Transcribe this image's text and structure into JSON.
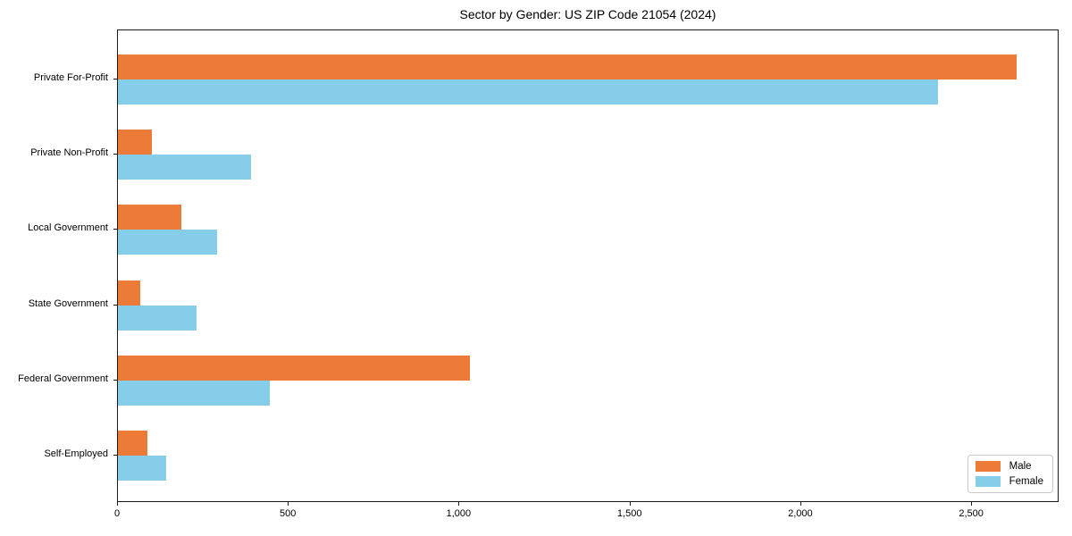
{
  "title": "Sector by Gender: US ZIP Code 21054 (2024)",
  "chart_data": {
    "type": "bar",
    "orientation": "horizontal",
    "title": "Sector by Gender: US ZIP Code 21054 (2024)",
    "categories": [
      "Private For-Profit",
      "Private Non-Profit",
      "Local Government",
      "State Government",
      "Federal Government",
      "Self-Employed"
    ],
    "series": [
      {
        "name": "Male",
        "color": "#EC7B38",
        "values": [
          2630,
          100,
          185,
          65,
          1030,
          85
        ]
      },
      {
        "name": "Female",
        "color": "#86CDE9",
        "values": [
          2400,
          390,
          290,
          230,
          445,
          140
        ]
      }
    ],
    "xlabel": "",
    "ylabel": "",
    "xlim": [
      0,
      2756
    ],
    "x_ticks": [
      0,
      500,
      1000,
      1500,
      2000,
      2500
    ],
    "x_tick_labels": [
      "0",
      "500",
      "1,000",
      "1,500",
      "2,000",
      "2,500"
    ],
    "grid": false,
    "legend": {
      "position": "lower right",
      "entries": [
        {
          "label": "Male",
          "color": "#EC7B38"
        },
        {
          "label": "Female",
          "color": "#86CDE9"
        }
      ]
    }
  }
}
